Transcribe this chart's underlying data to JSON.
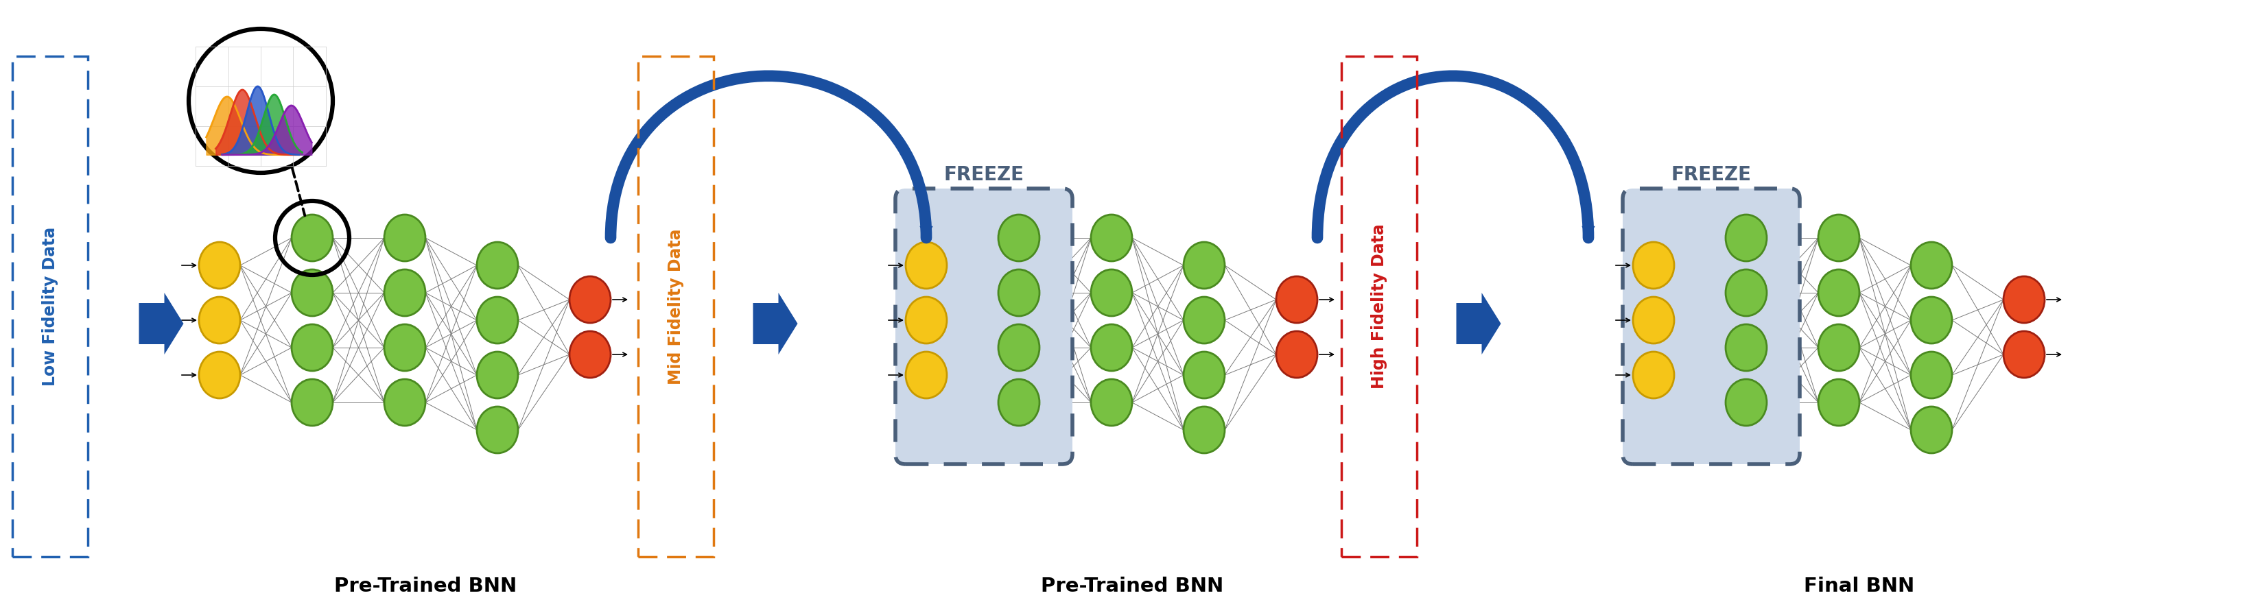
{
  "bg_color": "#ffffff",
  "node_green": "#78c142",
  "node_green_edge": "#4a8a20",
  "node_yellow": "#f5c518",
  "node_yellow_edge": "#c89a00",
  "node_red": "#e84820",
  "node_red_edge": "#a02010",
  "arrow_blue": "#1a4fa0",
  "freeze_fill": "#ccd8e8",
  "freeze_border": "#4a5f7a",
  "lf_color": "#2060b0",
  "mf_color": "#e07810",
  "hf_color": "#cc1818",
  "hist_colors": [
    "#f5a010",
    "#e83010",
    "#2858c0",
    "#28a030",
    "#7010a0"
  ],
  "bnn_labels": [
    "Pre-Trained BNN",
    "Pre-Trained BNN",
    "Final BNN"
  ],
  "freeze_text": "FREEZE",
  "lf_text": "Low Fidelity Data",
  "mf_text": "Mid Fidelity Data",
  "hf_text": "High Fidelity Data"
}
